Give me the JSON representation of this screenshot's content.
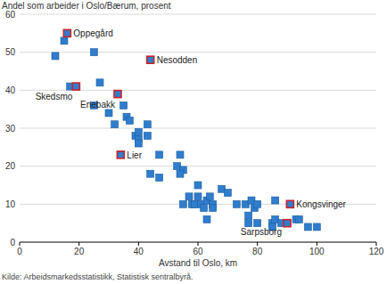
{
  "chart_data": {
    "type": "scatter",
    "y_label": "Andel som arbeider i Oslo/Bærum, prosent",
    "x_label": "Avstand til Oslo, km",
    "source": "Kilde: Arbeidsmarkedsstatistikk, Statistisk sentralbyrå.",
    "xlim": [
      0,
      120
    ],
    "xticks": [
      0,
      20,
      40,
      60,
      80,
      100,
      120
    ],
    "ylim": [
      0,
      60
    ],
    "yticks": [
      0,
      10,
      20,
      30,
      40,
      50,
      60
    ],
    "grid": true,
    "series": [
      {
        "color": "#2f7dcc",
        "marker": "square",
        "x": [
          12,
          15,
          25,
          27,
          25,
          17,
          30,
          32,
          35,
          36,
          37,
          39,
          40,
          40,
          40,
          43,
          43,
          44,
          47,
          47,
          53,
          54,
          55,
          54,
          55,
          57,
          58,
          59,
          60,
          60,
          61,
          62,
          63,
          63,
          64,
          65,
          65,
          68,
          70,
          73,
          76,
          77,
          77,
          78,
          79,
          80,
          80,
          85,
          85,
          86,
          86,
          88,
          93,
          94,
          97,
          100
        ],
        "values": [
          49,
          53,
          50,
          42,
          36,
          41,
          34,
          31,
          36,
          33,
          32,
          28,
          29,
          27,
          26,
          31,
          28,
          18,
          17,
          23,
          20,
          23,
          19,
          18,
          10,
          12,
          10,
          10,
          15,
          12,
          10,
          9,
          11,
          6,
          12,
          10,
          9,
          14,
          13,
          10,
          10,
          7,
          5,
          11,
          9,
          10,
          5,
          5,
          4,
          11,
          6,
          5,
          6,
          6,
          4,
          4
        ]
      },
      {
        "color": "#2f7dcc",
        "marker": "square-outlined",
        "x": [
          16,
          44,
          19,
          33,
          34,
          91,
          90
        ],
        "values": [
          55,
          48,
          41,
          39,
          23,
          10,
          5
        ],
        "labels": [
          "Oppegård",
          "Nesodden",
          "Skedsmo",
          "Enebakk",
          "Lier",
          "Kongsvinger",
          "Sarpsborg"
        ]
      }
    ]
  }
}
